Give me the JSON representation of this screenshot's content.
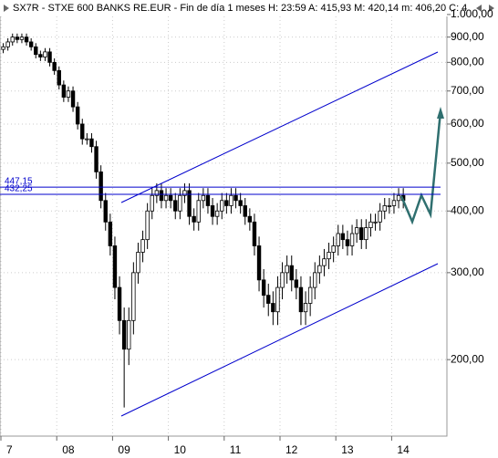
{
  "chart_data": {
    "type": "candlestick",
    "title": "SX7R - STXE 600 BANKS RE.EUR - Fin de día 1 meses  H: 23:59  A: 415,93  M: 420,14  m: 406,20  C: 4",
    "categories": [
      "7",
      null,
      null,
      null,
      null,
      null,
      null,
      null,
      null,
      null,
      null,
      null,
      "08",
      null,
      null,
      null,
      null,
      null,
      null,
      null,
      null,
      null,
      null,
      null,
      "09",
      null,
      null,
      null,
      null,
      null,
      null,
      null,
      null,
      null,
      null,
      null,
      "10",
      null,
      null,
      null,
      null,
      null,
      null,
      null,
      null,
      null,
      null,
      null,
      "11",
      null,
      null,
      null,
      null,
      null,
      null,
      null,
      null,
      null,
      null,
      null,
      "12",
      null,
      null,
      null,
      null,
      null,
      null,
      null,
      null,
      null,
      null,
      null,
      "13",
      null,
      null,
      null,
      null,
      null,
      null,
      null,
      null,
      null,
      null,
      null,
      "14",
      null,
      null
    ],
    "open": [
      850,
      860,
      880,
      900,
      890,
      900,
      880,
      860,
      830,
      820,
      840,
      800,
      770,
      720,
      680,
      700,
      650,
      600,
      560,
      560,
      540,
      480,
      420,
      380,
      340,
      280,
      240,
      210,
      240,
      300,
      330,
      350,
      400,
      430,
      440,
      420,
      430,
      420,
      400,
      430,
      440,
      390,
      380,
      420,
      430,
      410,
      390,
      400,
      420,
      410,
      430,
      420,
      410,
      390,
      380,
      340,
      290,
      270,
      260,
      250,
      280,
      300,
      310,
      290,
      280,
      250,
      260,
      280,
      300,
      310,
      320,
      330,
      340,
      360,
      350,
      340,
      360,
      370,
      350,
      370,
      380,
      380,
      400,
      410,
      410,
      420,
      430
    ],
    "high": [
      875,
      895,
      915,
      915,
      915,
      915,
      895,
      875,
      845,
      855,
      855,
      815,
      785,
      735,
      715,
      715,
      665,
      615,
      575,
      575,
      555,
      495,
      435,
      395,
      355,
      295,
      255,
      255,
      315,
      345,
      365,
      415,
      445,
      455,
      455,
      445,
      445,
      435,
      445,
      455,
      455,
      405,
      435,
      445,
      445,
      425,
      415,
      435,
      435,
      445,
      445,
      435,
      425,
      405,
      395,
      355,
      305,
      285,
      275,
      295,
      315,
      325,
      325,
      305,
      295,
      275,
      295,
      315,
      325,
      335,
      345,
      355,
      375,
      375,
      365,
      375,
      385,
      385,
      385,
      395,
      395,
      415,
      425,
      425,
      435,
      445,
      445
    ],
    "low": [
      835,
      845,
      865,
      875,
      875,
      865,
      845,
      815,
      805,
      805,
      785,
      755,
      705,
      665,
      665,
      635,
      585,
      545,
      545,
      525,
      465,
      405,
      365,
      325,
      265,
      225,
      160,
      195,
      225,
      285,
      315,
      335,
      385,
      415,
      405,
      405,
      405,
      385,
      385,
      415,
      375,
      365,
      365,
      405,
      395,
      375,
      375,
      385,
      395,
      395,
      405,
      395,
      375,
      365,
      325,
      275,
      255,
      245,
      235,
      235,
      265,
      285,
      275,
      265,
      235,
      235,
      245,
      265,
      285,
      295,
      305,
      315,
      325,
      335,
      325,
      325,
      345,
      335,
      335,
      355,
      365,
      365,
      385,
      395,
      395,
      405,
      405
    ],
    "close": [
      860,
      880,
      900,
      890,
      900,
      880,
      860,
      830,
      820,
      840,
      800,
      770,
      720,
      680,
      700,
      650,
      600,
      560,
      560,
      540,
      480,
      420,
      380,
      340,
      280,
      240,
      210,
      240,
      300,
      330,
      350,
      400,
      430,
      440,
      420,
      430,
      420,
      400,
      430,
      440,
      390,
      380,
      420,
      430,
      410,
      390,
      400,
      420,
      410,
      430,
      420,
      410,
      390,
      380,
      340,
      290,
      270,
      260,
      250,
      280,
      300,
      310,
      290,
      280,
      250,
      260,
      280,
      300,
      310,
      320,
      330,
      340,
      360,
      350,
      340,
      360,
      370,
      350,
      370,
      380,
      380,
      400,
      410,
      410,
      420,
      430,
      420
    ],
    "up_color": "#ffffff",
    "down_color": "#000000",
    "ylim": [
      140,
      1070
    ],
    "log_scale": true,
    "grid": true,
    "yticks": [
      {
        "value": 200,
        "label": "200,00"
      },
      {
        "value": 300,
        "label": "300,00"
      },
      {
        "value": 400,
        "label": "400,00"
      },
      {
        "value": 500,
        "label": "500,00"
      },
      {
        "value": 600,
        "label": "600,00"
      },
      {
        "value": 700,
        "label": "700,00"
      },
      {
        "value": 800,
        "label": "800,00"
      },
      {
        "value": 900,
        "label": "900,00"
      },
      {
        "value": 1000,
        "label": "1.000,00"
      }
    ],
    "levels": [
      {
        "value": 447.15,
        "label": "447,15"
      },
      {
        "value": 432.25,
        "label": "432,25"
      }
    ],
    "level_color": "#0000cc"
  }
}
